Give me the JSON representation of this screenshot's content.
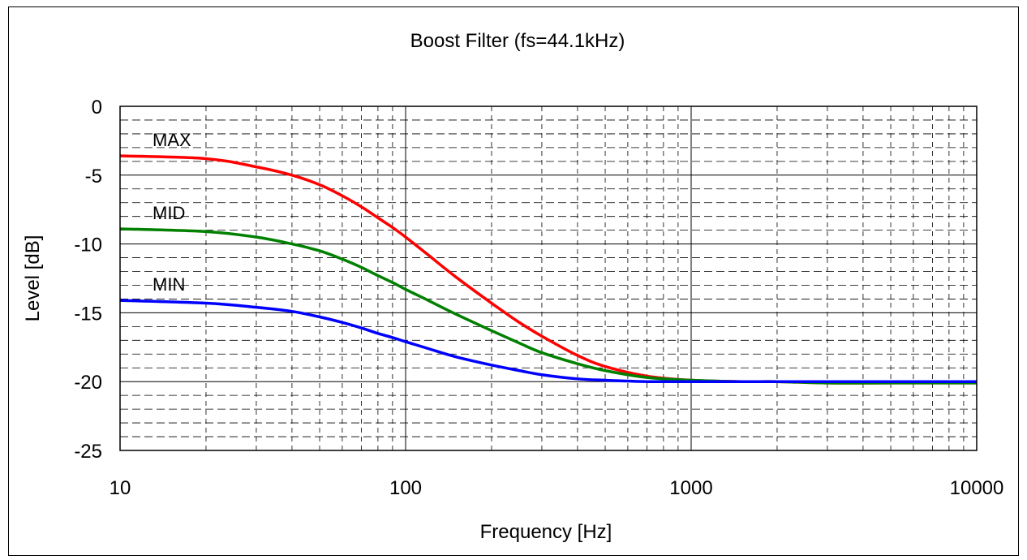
{
  "chart_data": {
    "type": "line",
    "title": "Boost Filter (fs=44.1kHz)",
    "xlabel": "Frequency [Hz]",
    "ylabel": "Level [dB]",
    "xscale": "log",
    "xlim": [
      10,
      10000
    ],
    "ylim": [
      -25,
      0
    ],
    "xticks": [
      "10",
      "100",
      "1000",
      "10000"
    ],
    "yticks": [
      "0",
      "-5",
      "-10",
      "-15",
      "-20",
      "-25"
    ],
    "grid": true,
    "legend": "none",
    "series": [
      {
        "name": "MAX",
        "color": "#ff0000",
        "x": [
          10,
          20,
          30,
          40,
          50,
          60,
          70,
          80,
          90,
          100,
          120,
          150,
          200,
          250,
          300,
          400,
          500,
          700,
          1000,
          1500,
          2000,
          3000,
          5000,
          10000
        ],
        "y": [
          -3.6,
          -3.8,
          -4.4,
          -5.0,
          -5.7,
          -6.5,
          -7.3,
          -8.1,
          -8.8,
          -9.5,
          -10.8,
          -12.4,
          -14.3,
          -15.7,
          -16.7,
          -18.1,
          -18.9,
          -19.6,
          -19.9,
          -20.0,
          -20.0,
          -20.1,
          -20.1,
          -20.1
        ]
      },
      {
        "name": "MID",
        "color": "#008000",
        "x": [
          10,
          20,
          30,
          40,
          50,
          60,
          70,
          80,
          90,
          100,
          120,
          150,
          200,
          250,
          300,
          400,
          500,
          700,
          1000,
          1500,
          2000,
          3000,
          5000,
          10000
        ],
        "y": [
          -8.9,
          -9.1,
          -9.5,
          -10.0,
          -10.5,
          -11.1,
          -11.7,
          -12.3,
          -12.8,
          -13.3,
          -14.1,
          -15.1,
          -16.3,
          -17.2,
          -17.9,
          -18.7,
          -19.2,
          -19.7,
          -19.9,
          -20.0,
          -20.0,
          -20.1,
          -20.1,
          -20.1
        ]
      },
      {
        "name": "MIN",
        "color": "#0000ff",
        "x": [
          10,
          20,
          30,
          40,
          50,
          60,
          70,
          80,
          90,
          100,
          120,
          150,
          200,
          250,
          300,
          400,
          500,
          700,
          1000,
          1500,
          2000,
          3000,
          5000,
          10000
        ],
        "y": [
          -14.1,
          -14.3,
          -14.6,
          -14.9,
          -15.3,
          -15.7,
          -16.1,
          -16.5,
          -16.8,
          -17.1,
          -17.6,
          -18.2,
          -18.8,
          -19.2,
          -19.5,
          -19.8,
          -19.9,
          -20.0,
          -20.0,
          -20.0,
          -20.0,
          -20.0,
          -20.0,
          -20.0
        ]
      }
    ]
  }
}
